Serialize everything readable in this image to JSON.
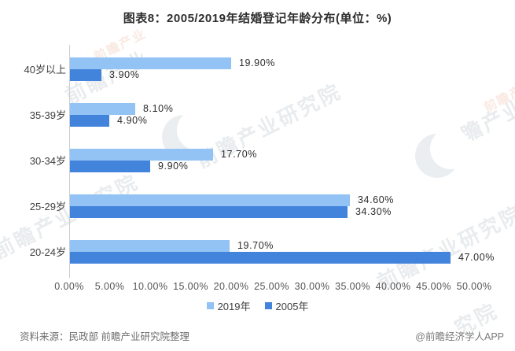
{
  "title": "图表8：2005/2019年结婚登记年龄分布(单位：%)",
  "chart_data": {
    "type": "bar",
    "orientation": "horizontal",
    "title": "图表8：2005/2019年结婚登记年龄分布(单位：%)",
    "categories": [
      "40岁以上",
      "35-39岁",
      "30-34岁",
      "25-29岁",
      "20-24岁"
    ],
    "series": [
      {
        "name": "2019年",
        "color": "#92C3F4",
        "values": [
          19.9,
          8.1,
          17.7,
          34.6,
          19.7
        ]
      },
      {
        "name": "2005年",
        "color": "#4284DC",
        "values": [
          3.9,
          4.9,
          9.9,
          34.3,
          47.0
        ]
      }
    ],
    "value_labels": [
      [
        "19.90%",
        "8.10%",
        "17.70%",
        "34.60%",
        "19.70%"
      ],
      [
        "3.90%",
        "4.90%",
        "9.90%",
        "34.30%",
        "47.00%"
      ]
    ],
    "xlim": [
      0,
      50
    ],
    "x_ticks": [
      "0.00%",
      "5.00%",
      "10.00%",
      "15.00%",
      "20.00%",
      "25.00%",
      "30.00%",
      "35.00%",
      "40.00%",
      "45.00%",
      "50.00%"
    ],
    "legend_position": "bottom",
    "grid": false
  },
  "footer": {
    "source": "资料来源：民政部 前瞻产业研究院整理",
    "credit": "@前瞻经济学人APP"
  },
  "watermark": {
    "text_main": "前瞻产业研究院",
    "text_short": "前瞻产业",
    "text_frag": "究院"
  },
  "colors": {
    "bar_2019": "#92C3F4",
    "bar_2005": "#4284DC",
    "axis_line": "#c7ced4",
    "title_text": "#2e2e2e",
    "tick_text": "#555555",
    "footer_text": "#6f6f6f"
  }
}
